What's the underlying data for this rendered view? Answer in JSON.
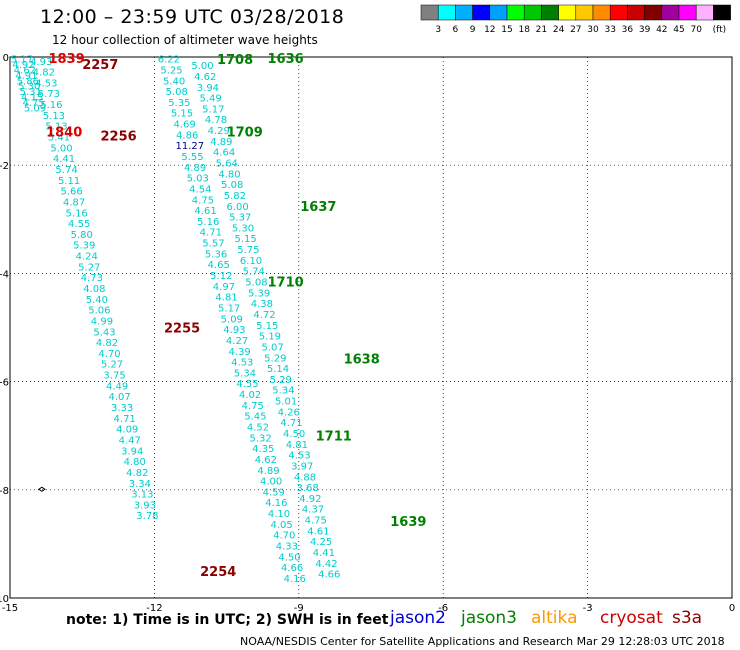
{
  "title": "12:00  –  23:59 UTC 03/28/2018",
  "subtitle": "12 hour collection of altimeter wave heights",
  "colorbar": {
    "colors": [
      "#808080",
      "#00ffff",
      "#00b0ff",
      "#0000ff",
      "#00a0ff",
      "#00ff00",
      "#00c800",
      "#008000",
      "#ffff00",
      "#ffc800",
      "#ff8c00",
      "#ff0000",
      "#c80000",
      "#800000",
      "#a000a0",
      "#ff00ff",
      "#ffb0ff",
      "#000000"
    ],
    "labels": [
      "3",
      "6",
      "9",
      "12",
      "15",
      "18",
      "21",
      "24",
      "27",
      "30",
      "33",
      "36",
      "39",
      "42",
      "45",
      "70",
      "(ft)"
    ]
  },
  "axes": {
    "x_ticks": [
      "-15",
      "-12",
      "-9",
      "-6",
      "-3",
      "0"
    ],
    "y_ticks": [
      "0",
      "-2",
      "-4",
      "-6",
      "-8",
      "-10"
    ]
  },
  "chart_data": {
    "type": "scatter",
    "xlim": [
      -15,
      0
    ],
    "ylim": [
      -10,
      0
    ],
    "tracks": [
      {
        "x0": -14.75,
        "y0": -0.03,
        "dx": 0.03,
        "dy": -0.1,
        "values": [
          "5.17",
          "4.92",
          "4.62",
          "4.91",
          "5.86",
          "5.30",
          "5.31",
          "4.15",
          "4.75",
          "5.09"
        ]
      },
      {
        "x0": -14.35,
        "y0": -0.07,
        "dx": 0.0525,
        "dy": -0.2,
        "values": [
          "4.93",
          "4.82",
          "4.53",
          "5.73",
          "5.16",
          "5.13",
          "5.13",
          "5.41",
          "5.00",
          "4.41",
          "5.74",
          "5.11",
          "5.66",
          "4.87",
          "5.16",
          "4.55",
          "5.80",
          "5.39",
          "4.24",
          "5.27",
          "4.73",
          "4.08",
          "5.40",
          "5.06",
          "4.99",
          "5.43",
          "4.82",
          "4.70",
          "5.27",
          "3.75",
          "4.49",
          "4.07",
          "3.33",
          "4.71",
          "4.09",
          "4.47",
          "3.94",
          "4.80",
          "4.82",
          "3.34",
          "3.13",
          "3.93",
          "3.78"
        ]
      },
      {
        "x0": -11.7,
        "y0": -0.03,
        "dx": 0.0545,
        "dy": -0.2,
        "values": [
          "6.22",
          "5.25",
          "5.40",
          "5.08",
          "5.35",
          "5.15",
          "4.69",
          "4.86",
          "11.27",
          "5.55",
          "4.89",
          "5.03",
          "4.54",
          "4.75",
          "4.61",
          "5.16",
          "4.71",
          "5.57",
          "5.36",
          "4.65",
          "5.12",
          "4.97",
          "4.81",
          "5.17",
          "5.09",
          "4.93",
          "4.27",
          "4.39",
          "4.53",
          "5.34",
          "4.55",
          "4.02",
          "4.75",
          "5.45",
          "4.52",
          "5.32",
          "4.35",
          "4.62",
          "4.89",
          "4.00",
          "4.59",
          "4.16",
          "4.10",
          "4.05",
          "4.70",
          "4.33",
          "4.50",
          "4.66",
          "4.16"
        ]
      },
      {
        "x0": -11.0,
        "y0": -0.15,
        "dx": 0.056,
        "dy": -0.2,
        "values": [
          "5.00",
          "4.62",
          "3.94",
          "5.49",
          "5.17",
          "4.78",
          "4.29",
          "4.89",
          "4.64",
          "5.64",
          "4.80",
          "5.08",
          "5.82",
          "6.00",
          "5.37",
          "5.30",
          "5.15",
          "5.75",
          "6.10",
          "5.74",
          "5.08",
          "5.39",
          "4.38",
          "4.72",
          "5.15",
          "5.19",
          "5.07",
          "5.29",
          "5.14",
          "5.29",
          "5.34",
          "5.01",
          "4.26",
          "4.71",
          "4.50",
          "4.81",
          "4.53",
          "3.97",
          "4.88",
          "3.68",
          "4.92",
          "4.37",
          "4.75",
          "4.61",
          "4.25",
          "4.41",
          "4.42",
          "4.66"
        ]
      }
    ],
    "time_labels": [
      {
        "text": "1839",
        "x": -14.2,
        "y": -0.02,
        "mission": "cryosat"
      },
      {
        "text": "2257",
        "x": -13.5,
        "y": -0.13,
        "mission": "cryosat_dark"
      },
      {
        "text": "1840",
        "x": -14.25,
        "y": -1.38,
        "mission": "cryosat"
      },
      {
        "text": "2256",
        "x": -13.12,
        "y": -1.45,
        "mission": "cryosat_dark"
      },
      {
        "text": "2255",
        "x": -11.8,
        "y": -5.0,
        "mission": "cryosat_dark"
      },
      {
        "text": "2254",
        "x": -11.05,
        "y": -9.5,
        "mission": "cryosat_dark"
      },
      {
        "text": "1708",
        "x": -10.7,
        "y": -0.04,
        "mission": "jason3"
      },
      {
        "text": "1636",
        "x": -9.65,
        "y": -0.02,
        "mission": "jason3"
      },
      {
        "text": "1709",
        "x": -10.5,
        "y": -1.38,
        "mission": "jason3"
      },
      {
        "text": "1637",
        "x": -8.97,
        "y": -2.75,
        "mission": "jason3"
      },
      {
        "text": "1710",
        "x": -9.65,
        "y": -4.15,
        "mission": "jason3"
      },
      {
        "text": "1638",
        "x": -8.07,
        "y": -5.57,
        "mission": "jason3"
      },
      {
        "text": "1711",
        "x": -8.65,
        "y": -7.0,
        "mission": "jason3"
      },
      {
        "text": "1639",
        "x": -7.1,
        "y": -8.58,
        "mission": "jason3"
      }
    ]
  },
  "footer": {
    "note": "note:  1) Time is in UTC;  2) SWH is in feet",
    "missions": [
      {
        "name": "jason2",
        "color": "#0000cc",
        "x": 390
      },
      {
        "name": "jason3",
        "color": "#008000",
        "x": 461
      },
      {
        "name": "altika",
        "color": "#ff9900",
        "x": 531
      },
      {
        "name": "cryosat",
        "color": "#cc0000",
        "x": 600
      },
      {
        "name": "s3a",
        "color": "#8b0000",
        "x": 672
      }
    ],
    "credit": "NOAA/NESDIS Center for Satellite Applications and Research    Mar 29 12:28:03 UTC 2018"
  },
  "colors": {
    "swh_text": "#00cccc",
    "highlight_text": "#00008b",
    "cryosat": "#dd0000",
    "cryosat_dark": "#8b0000",
    "jason3": "#008000",
    "grid": "#000000"
  }
}
